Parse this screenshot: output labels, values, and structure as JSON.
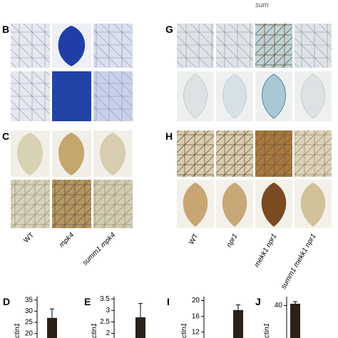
{
  "header": {
    "cropped_text": "sum"
  },
  "panels": {
    "B": "B",
    "C": "C",
    "G": "G",
    "H": "H"
  },
  "left_genotypes": [
    "WT",
    "mpk4",
    "summ1 mpk4"
  ],
  "right_genotypes": [
    "WT",
    "npr1",
    "mekk1 npr1",
    "summ1 mekk1 npr1"
  ],
  "chart_data": [
    {
      "type": "bar",
      "panel": "D",
      "ylabel": "ctin1",
      "ylim": [
        18,
        36.5
      ],
      "yticks": [
        20,
        25,
        30,
        35
      ],
      "values": [
        27
      ],
      "errors": [
        4
      ],
      "color": "#2b2118"
    },
    {
      "type": "bar",
      "panel": "E",
      "ylabel": "ctin1",
      "ylim": [
        1.8,
        3.6
      ],
      "yticks": [
        2,
        2.5,
        3,
        3.5
      ],
      "values": [
        2.7
      ],
      "errors": [
        0.6
      ],
      "color": "#2b2118"
    },
    {
      "type": "bar",
      "panel": "I",
      "ylabel": "ctin1",
      "ylim": [
        10.5,
        21
      ],
      "yticks": [
        12,
        16,
        20
      ],
      "values": [
        17.6
      ],
      "errors": [
        1.3
      ],
      "color": "#2b2118"
    },
    {
      "type": "bar",
      "panel": "J",
      "ylabel": "ctin1",
      "ylim": [
        29,
        43
      ],
      "yticks": [
        40
      ],
      "values": [
        40.6
      ],
      "errors": [
        0.7
      ],
      "color": "#2b2118"
    }
  ]
}
